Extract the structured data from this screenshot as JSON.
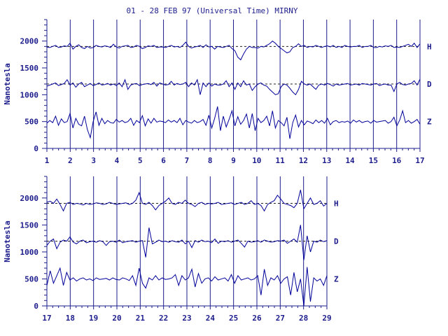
{
  "title": "01 - 28 FEB 97 (Universal Time) MIRNY",
  "colors": {
    "ink": "#1c1c8c",
    "trace": "#00009a",
    "frame": "#1c1c8c"
  },
  "chart_data": [
    {
      "type": "line",
      "panel": "top",
      "ylabel": "Nanotesla",
      "ylim": [
        0,
        2400
      ],
      "yticks": [
        0,
        500,
        1000,
        1500,
        2000
      ],
      "xlim": [
        1,
        17
      ],
      "xticks": [
        "1",
        "2",
        "3",
        "4",
        "5",
        "6",
        "7",
        "8",
        "9",
        "10",
        "11",
        "12",
        "13",
        "14",
        "15",
        "16",
        "17"
      ],
      "grid_x": true,
      "series": [
        {
          "name": "H",
          "baseline": 1900,
          "dashed_reference": true,
          "values": [
            1890,
            1880,
            1900,
            1920,
            1880,
            1890,
            1910,
            1900,
            1960,
            1850,
            1900,
            1930,
            1880,
            1860,
            1900,
            1870,
            1880,
            1920,
            1900,
            1890,
            1910,
            1900,
            1880,
            1940,
            1890,
            1870,
            1900,
            1910,
            1920,
            1880,
            1890,
            1920,
            1900,
            1860,
            1880,
            1910,
            1900,
            1920,
            1880,
            1890,
            1890,
            1880,
            1900,
            1920,
            1890,
            1900,
            1880,
            1920,
            1980,
            1900,
            1870,
            1890,
            1900,
            1920,
            1880,
            1930,
            1890,
            1900,
            1850,
            1900,
            1890,
            1880,
            1900,
            1920,
            1860,
            1820,
            1700,
            1650,
            1760,
            1850,
            1900,
            1880,
            1880,
            1870,
            1900,
            1890,
            1920,
            1950,
            2000,
            1960,
            1900,
            1860,
            1820,
            1780,
            1800,
            1880,
            1900,
            1950,
            1900,
            1920,
            1880,
            1900,
            1890,
            1920,
            1900,
            1880,
            1900,
            1910,
            1890,
            1920,
            1880,
            1900,
            1880,
            1920,
            1900,
            1890,
            1900,
            1900,
            1920,
            1880,
            1900,
            1900,
            1920,
            1880,
            1880,
            1900,
            1890,
            1910,
            1900,
            1920,
            1880,
            1890,
            1880,
            1900,
            1920,
            1940,
            1900,
            1960,
            1880,
            1950
          ]
        },
        {
          "name": "D",
          "baseline": 1200,
          "dashed_reference": true,
          "values": [
            1160,
            1180,
            1200,
            1220,
            1170,
            1190,
            1210,
            1280,
            1180,
            1220,
            1140,
            1200,
            1230,
            1150,
            1180,
            1210,
            1170,
            1190,
            1220,
            1180,
            1190,
            1210,
            1180,
            1200,
            1170,
            1220,
            1150,
            1280,
            1100,
            1180,
            1200,
            1210,
            1170,
            1190,
            1200,
            1210,
            1190,
            1230,
            1160,
            1220,
            1200,
            1180,
            1190,
            1250,
            1180,
            1210,
            1190,
            1200,
            1230,
            1150,
            1220,
            1180,
            1280,
            1000,
            1220,
            1150,
            1220,
            1160,
            1200,
            1180,
            1180,
            1200,
            1260,
            1150,
            1220,
            1100,
            1220,
            1150,
            1260,
            1180,
            1200,
            1080,
            1150,
            1200,
            1220,
            1180,
            1160,
            1100,
            1050,
            1000,
            1020,
            1150,
            1200,
            1180,
            1120,
            1050,
            1000,
            1100,
            1250,
            1200,
            1180,
            1200,
            1150,
            1100,
            1180,
            1200,
            1180,
            1210,
            1190,
            1160,
            1200,
            1180,
            1190,
            1200,
            1210,
            1180,
            1190,
            1200,
            1180,
            1210,
            1200,
            1190,
            1180,
            1200,
            1210,
            1170,
            1190,
            1200,
            1180,
            1180,
            1060,
            1200,
            1230,
            1190,
            1180,
            1200,
            1210,
            1260,
            1180,
            1290
          ]
        },
        {
          "name": "Z",
          "baseline": 500,
          "dashed_reference": false,
          "values": [
            470,
            520,
            480,
            600,
            430,
            550,
            480,
            500,
            650,
            380,
            560,
            450,
            420,
            600,
            350,
            200,
            500,
            680,
            430,
            560,
            460,
            520,
            480,
            470,
            540,
            490,
            520,
            480,
            500,
            560,
            430,
            520,
            480,
            610,
            420,
            550,
            470,
            560,
            490,
            510,
            500,
            480,
            530,
            490,
            520,
            480,
            560,
            440,
            520,
            490,
            470,
            520,
            480,
            500,
            540,
            430,
            620,
            380,
            560,
            780,
            330,
            600,
            400,
            540,
            700,
            420,
            590,
            450,
            520,
            640,
            380,
            650,
            330,
            560,
            480,
            520,
            600,
            420,
            700,
            380,
            520,
            480,
            420,
            580,
            180,
            480,
            620,
            400,
            520,
            440,
            510,
            490,
            460,
            530,
            480,
            520,
            470,
            560,
            440,
            500,
            520,
            480,
            500,
            490,
            510,
            470,
            530,
            490,
            520,
            480,
            500,
            510,
            470,
            520,
            490,
            500,
            510,
            520,
            470,
            500,
            580,
            420,
            530,
            700,
            480,
            520,
            470,
            500,
            540,
            450
          ]
        }
      ]
    },
    {
      "type": "line",
      "panel": "bottom",
      "ylabel": "Nanotesla",
      "ylim": [
        0,
        2400
      ],
      "yticks": [
        0,
        500,
        1000,
        1500,
        2000
      ],
      "xlim": [
        17,
        29
      ],
      "xticks": [
        "17",
        "18",
        "19",
        "20",
        "21",
        "22",
        "23",
        "24",
        "25",
        "26",
        "27",
        "28",
        "29"
      ],
      "grid_x": true,
      "series": [
        {
          "name": "H",
          "baseline": 1900,
          "dashed_reference": true,
          "values": [
            1920,
            1940,
            1900,
            1980,
            1880,
            1760,
            1900,
            1920,
            1880,
            1900,
            1890,
            1870,
            1900,
            1880,
            1890,
            1910,
            1900,
            1880,
            1890,
            1920,
            1900,
            1880,
            1890,
            1900,
            1910,
            1880,
            1900,
            1960,
            2100,
            1900,
            1880,
            1920,
            1860,
            1780,
            1860,
            1900,
            1940,
            2000,
            1900,
            1880,
            1920,
            1900,
            1960,
            1900,
            1880,
            1840,
            1900,
            1920,
            1880,
            1900,
            1890,
            1900,
            1920,
            1880,
            1890,
            1900,
            1910,
            1880,
            1900,
            1920,
            1880,
            1900,
            1950,
            1880,
            1900,
            1860,
            1760,
            1880,
            1920,
            1950,
            2050,
            1980,
            1900,
            1880,
            1860,
            1820,
            1900,
            2150,
            1800,
            1900,
            2000,
            1880,
            1900,
            1950,
            1850,
            1900
          ]
        },
        {
          "name": "D",
          "baseline": 1200,
          "dashed_reference": true,
          "values": [
            1120,
            1200,
            1240,
            1060,
            1180,
            1220,
            1200,
            1280,
            1180,
            1150,
            1200,
            1220,
            1170,
            1190,
            1200,
            1180,
            1210,
            1190,
            1120,
            1190,
            1200,
            1180,
            1220,
            1170,
            1190,
            1200,
            1210,
            1180,
            1200,
            1210,
            900,
            1450,
            1150,
            1180,
            1220,
            1190,
            1200,
            1180,
            1210,
            1190,
            1180,
            1220,
            1150,
            1200,
            1080,
            1210,
            1180,
            1220,
            1190,
            1200,
            1170,
            1240,
            1160,
            1200,
            1190,
            1210,
            1180,
            1200,
            1220,
            1160,
            1090,
            1200,
            1180,
            1190,
            1210,
            1180,
            1220,
            1200,
            1180,
            1190,
            1210,
            1200,
            1220,
            1160,
            1200,
            1240,
            1180,
            1500,
            850,
            1300,
            1000,
            1200,
            1180,
            1220,
            1190,
            1210
          ]
        },
        {
          "name": "Z",
          "baseline": 500,
          "dashed_reference": false,
          "values": [
            380,
            650,
            420,
            560,
            700,
            380,
            620,
            480,
            520,
            460,
            500,
            520,
            480,
            500,
            470,
            520,
            490,
            500,
            510,
            480,
            520,
            490,
            480,
            520,
            500,
            470,
            560,
            380,
            700,
            420,
            330,
            520,
            480,
            560,
            480,
            520,
            490,
            500,
            520,
            580,
            380,
            560,
            480,
            520,
            680,
            350,
            600,
            420,
            500,
            520,
            460,
            540,
            480,
            500,
            520,
            460,
            580,
            420,
            560,
            480,
            500,
            520,
            480,
            500,
            560,
            200,
            680,
            380,
            520,
            480,
            560,
            420,
            500,
            540,
            200,
            620,
            260,
            500,
            0,
            720,
            80,
            520,
            460,
            500,
            380,
            560
          ]
        }
      ]
    }
  ]
}
